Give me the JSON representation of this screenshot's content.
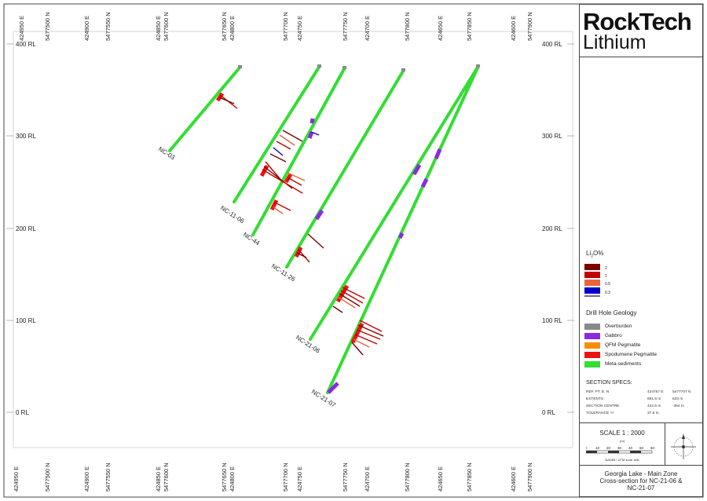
{
  "rl_labels": [
    "400 RL",
    "300 RL",
    "200 RL",
    "100 RL",
    "0 RL"
  ],
  "grid_labels": [
    "424950 E",
    "5477500 N",
    "424900 E",
    "5477550 N",
    "424850 E",
    "5477600 N",
    "5477650 N",
    "424800 E",
    "5477700 N",
    "424750 E",
    "5477750 N",
    "424700 E",
    "5477800 N",
    "424650 E",
    "5477850 N",
    "424600 E",
    "5477900 N"
  ],
  "drill_holes": [
    "NC-03",
    "NC-11-06",
    "NC-44",
    "NC-11-26",
    "NC-21-06",
    "NC-21-07"
  ],
  "logo": {
    "line1": "RockTech",
    "line2": "Lithium"
  },
  "legend_li": {
    "title": "Li2O%",
    "entries": [
      {
        "label": "",
        "color": "#7a0000"
      },
      {
        "label": "2",
        "color": "#c00000"
      },
      {
        "label": "1",
        "color": "#e8643c"
      },
      {
        "label": "0.5",
        "color": "#0000cc"
      },
      {
        "label": "0.3",
        "color": "#6c6ca8"
      }
    ]
  },
  "legend_geology": {
    "title": "Drill Hole Geology",
    "entries": [
      {
        "label": "Overburden",
        "color": "#8a8a8a"
      },
      {
        "label": "Gabbro",
        "color": "#8a2be2"
      },
      {
        "label": "QFM Pegmatite",
        "color": "#ff8c00"
      },
      {
        "label": "Spodumene Pegmatite",
        "color": "#ee1111"
      },
      {
        "label": "Meta-sediments",
        "color": "#33dd33"
      }
    ]
  },
  "specs": {
    "title": "SECTION SPECS:",
    "rows": [
      {
        "k": "REF. PT. E, N",
        "v1": "424757 E",
        "v2": "5477707 N"
      },
      {
        "k": "EXTENTS",
        "v1": "691.6 m",
        "v2": "633 m"
      },
      {
        "k": "SECTION CENTRE",
        "v1": "442.6 m",
        "v2": "-354 m"
      },
      {
        "k": "TOLERANCE +/-",
        "v1": "37.5 m",
        "v2": ""
      }
    ]
  },
  "scale": {
    "title": "SCALE 1 : 2000",
    "unit": "(m)",
    "ticks": [
      "0",
      "10",
      "20",
      "30",
      "40",
      "50",
      "60"
    ],
    "projection": "NAD83 / UTM zone 16N"
  },
  "title_block": {
    "line1": "Georgia Lake - Main Zone",
    "line2": "Cross-section for NC-21-06 &",
    "line3": "NC-21-07"
  }
}
